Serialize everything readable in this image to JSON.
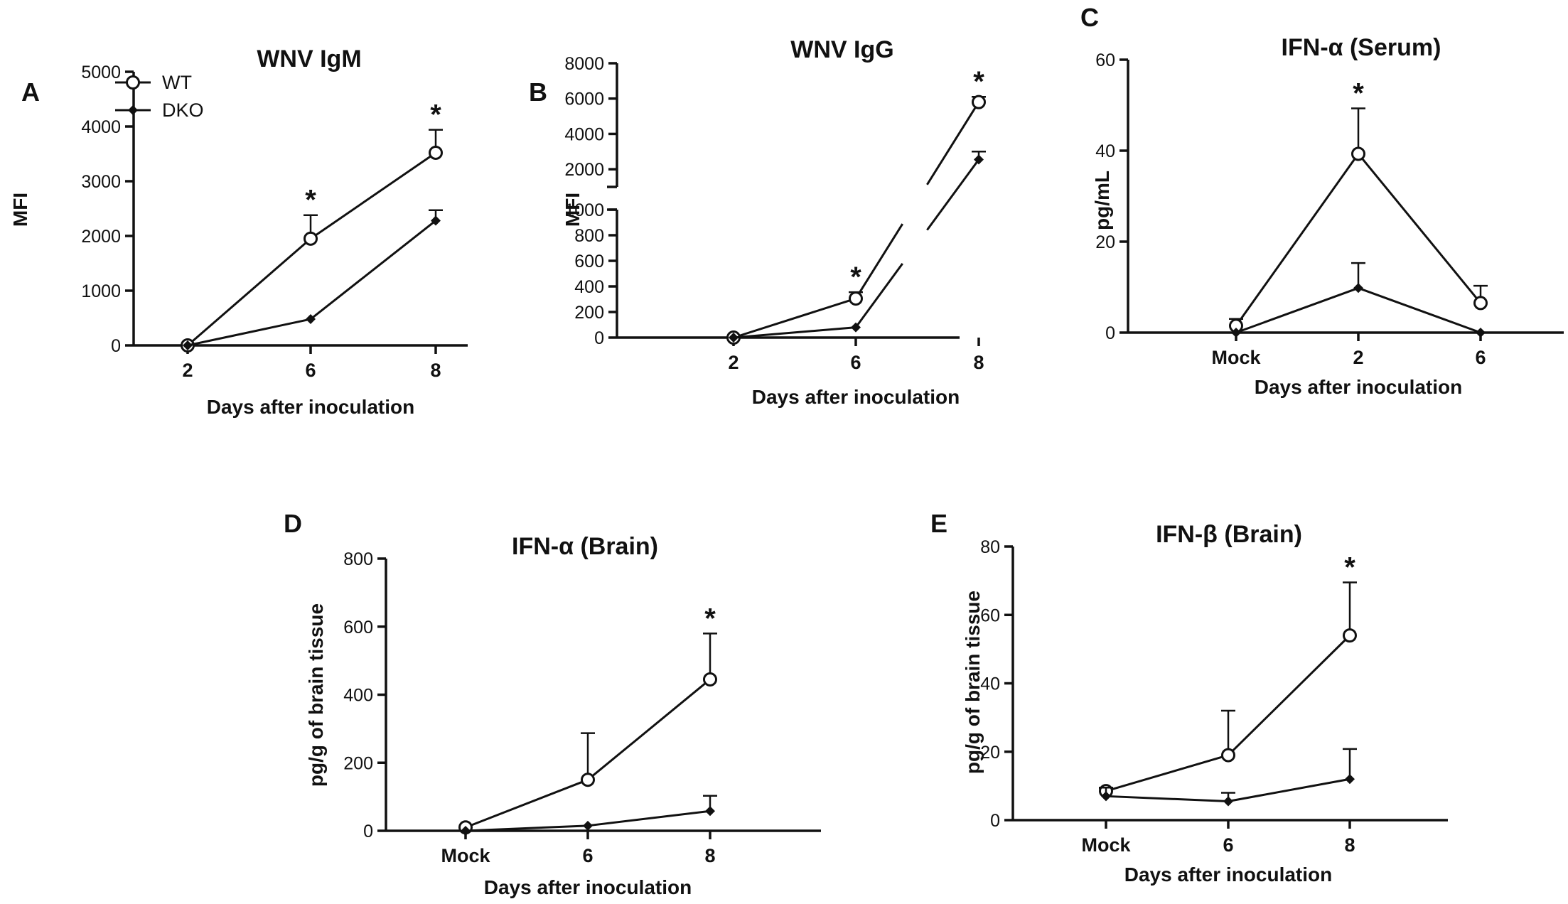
{
  "figure": {
    "legend": {
      "wt": "WT",
      "dko": "DKO"
    }
  },
  "chart_data": [
    {
      "panel": "A",
      "type": "line",
      "title": "WNV IgM",
      "xlabel": "Days after inoculation",
      "ylabel": "MFI",
      "categories": [
        "2",
        "6",
        "8"
      ],
      "ylim": [
        0,
        5000
      ],
      "yticks": [
        0,
        1000,
        2000,
        3000,
        4000,
        5000
      ],
      "series": [
        {
          "name": "WT",
          "marker": "open-circle",
          "values": [
            0,
            1950,
            3520
          ],
          "errors": [
            0,
            430,
            420
          ]
        },
        {
          "name": "DKO",
          "marker": "filled-diamond",
          "values": [
            0,
            480,
            2280
          ],
          "errors": [
            0,
            0,
            190
          ]
        }
      ],
      "significance": [
        {
          "category": "6",
          "label": "*"
        },
        {
          "category": "8",
          "label": "*"
        }
      ],
      "legend_position": "top-left"
    },
    {
      "panel": "B",
      "type": "line",
      "title": "WNV IgG",
      "xlabel": "Days after inoculation",
      "ylabel": "MFI",
      "categories": [
        "2",
        "6",
        "8"
      ],
      "broken_axis": {
        "lower": [
          0,
          1000
        ],
        "upper": [
          1000,
          8000
        ]
      },
      "yticks_lower": [
        0,
        200,
        400,
        600,
        800,
        1000
      ],
      "yticks_upper": [
        2000,
        4000,
        6000,
        8000
      ],
      "series": [
        {
          "name": "WT",
          "marker": "open-circle",
          "values": [
            0,
            305,
            5800
          ],
          "errors": [
            0,
            50,
            300
          ]
        },
        {
          "name": "DKO",
          "marker": "filled-diamond",
          "values": [
            0,
            80,
            2550
          ],
          "errors": [
            0,
            0,
            450
          ]
        }
      ],
      "significance": [
        {
          "category": "6",
          "label": "*"
        },
        {
          "category": "8",
          "label": "*"
        }
      ]
    },
    {
      "panel": "C",
      "type": "line",
      "title": "IFN-α (Serum)",
      "xlabel": "Days after inoculation",
      "ylabel": "pg/mL",
      "categories": [
        "Mock",
        "2",
        "6"
      ],
      "ylim": [
        0,
        60
      ],
      "yticks": [
        0,
        20,
        40,
        60
      ],
      "series": [
        {
          "name": "WT",
          "marker": "open-circle",
          "values": [
            1.5,
            39.3,
            6.5
          ],
          "errors": [
            1.5,
            10,
            3.8
          ]
        },
        {
          "name": "DKO",
          "marker": "filled-diamond",
          "values": [
            0,
            9.8,
            0
          ],
          "errors": [
            0,
            5.5,
            0
          ]
        }
      ],
      "significance": [
        {
          "category": "2",
          "label": "*"
        }
      ]
    },
    {
      "panel": "D",
      "type": "line",
      "title": "IFN-α (Brain)",
      "xlabel": "Days after inoculation",
      "ylabel": "pg/g of brain tissue",
      "categories": [
        "Mock",
        "6",
        "8"
      ],
      "ylim": [
        0,
        800
      ],
      "yticks": [
        0,
        200,
        400,
        600,
        800
      ],
      "series": [
        {
          "name": "WT",
          "marker": "open-circle",
          "values": [
            10,
            150,
            445
          ],
          "errors": [
            0,
            137,
            135
          ]
        },
        {
          "name": "DKO",
          "marker": "filled-diamond",
          "values": [
            0,
            15,
            58
          ],
          "errors": [
            0,
            0,
            45
          ]
        }
      ],
      "significance": [
        {
          "category": "8",
          "label": "*"
        }
      ]
    },
    {
      "panel": "E",
      "type": "line",
      "title": "IFN-β (Brain)",
      "xlabel": "Days after inoculation",
      "ylabel": "pg/g of brain tissue",
      "categories": [
        "Mock",
        "6",
        "8"
      ],
      "ylim": [
        0,
        80
      ],
      "yticks": [
        0,
        20,
        40,
        60,
        80
      ],
      "series": [
        {
          "name": "WT",
          "marker": "open-circle",
          "values": [
            8.5,
            19,
            54
          ],
          "errors": [
            0.8,
            13,
            15.5
          ]
        },
        {
          "name": "DKO",
          "marker": "filled-diamond",
          "values": [
            7,
            5.5,
            12
          ],
          "errors": [
            2.5,
            2.5,
            8.8
          ]
        }
      ],
      "significance": [
        {
          "category": "8",
          "label": "*"
        }
      ]
    }
  ]
}
